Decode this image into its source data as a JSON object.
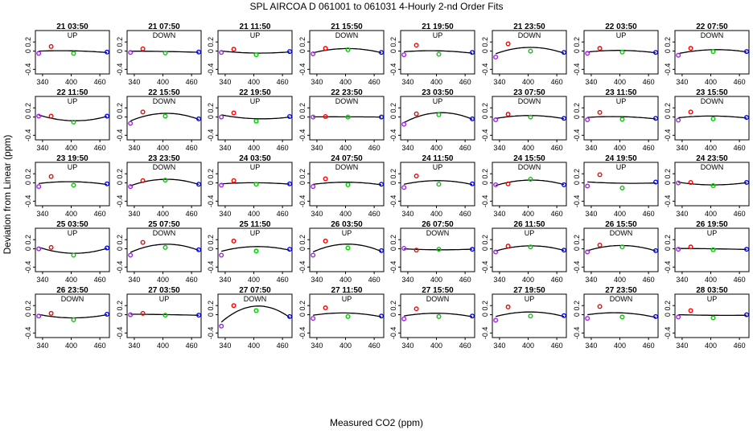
{
  "chart_data": {
    "type": "scatter",
    "title": "SPL   AIRCOA D   061001 to 061031   4-Hourly 2-nd Order Fits",
    "xlabel": "Measured CO2 (ppm)",
    "ylabel": "Deviation from Linear (ppm)",
    "xlim": [
      325,
      480
    ],
    "ylim": [
      -0.5,
      0.45
    ],
    "xticks": [
      340,
      400,
      460
    ],
    "yticks": [
      -0.4,
      0.0,
      0.2
    ],
    "ytick_labels": [
      "-0.4",
      "0",
      "0.2"
    ],
    "grid": false,
    "standards_x": [
      332,
      358,
      405,
      475
    ],
    "point_colors": [
      "#a020f0",
      "#ff0000",
      "#00cc00",
      "#0000ff"
    ],
    "panels": [
      {
        "time": "21 03:50",
        "dir": "UP",
        "d": [
          -0.05,
          0.1,
          -0.05,
          -0.02
        ]
      },
      {
        "time": "21 07:50",
        "dir": "DOWN",
        "d": [
          -0.03,
          0.05,
          -0.04,
          -0.02
        ]
      },
      {
        "time": "21 11:50",
        "dir": "UP",
        "d": [
          -0.03,
          0.04,
          -0.08,
          -0.01
        ]
      },
      {
        "time": "21 15:50",
        "dir": "DOWN",
        "d": [
          -0.06,
          0.06,
          0.03,
          -0.03
        ]
      },
      {
        "time": "21 19:50",
        "dir": "UP",
        "d": [
          -0.08,
          0.13,
          -0.07,
          -0.03
        ]
      },
      {
        "time": "21 23:50",
        "dir": "DOWN",
        "d": [
          -0.13,
          0.16,
          0.0,
          -0.03
        ]
      },
      {
        "time": "22 03:50",
        "dir": "UP",
        "d": [
          -0.05,
          0.06,
          -0.02,
          -0.03
        ]
      },
      {
        "time": "22 07:50",
        "dir": "DOWN",
        "d": [
          -0.09,
          0.06,
          -0.01,
          -0.01
        ]
      },
      {
        "time": "22 11:50",
        "dir": "UP",
        "d": [
          0.02,
          0.02,
          -0.11,
          0.02
        ]
      },
      {
        "time": "22 15:50",
        "dir": "DOWN",
        "d": [
          -0.14,
          0.11,
          0.02,
          -0.04
        ]
      },
      {
        "time": "22 19:50",
        "dir": "UP",
        "d": [
          0.0,
          0.09,
          -0.09,
          0.01
        ]
      },
      {
        "time": "22 23:50",
        "dir": "DOWN",
        "d": [
          0.0,
          0.01,
          0.0,
          0.0
        ]
      },
      {
        "time": "23 03:50",
        "dir": "UP",
        "d": [
          -0.16,
          0.07,
          0.05,
          -0.04
        ]
      },
      {
        "time": "23 07:50",
        "dir": "DOWN",
        "d": [
          -0.06,
          0.06,
          0.0,
          -0.03
        ]
      },
      {
        "time": "23 11:50",
        "dir": "UP",
        "d": [
          -0.06,
          0.1,
          -0.05,
          -0.03
        ]
      },
      {
        "time": "23 15:50",
        "dir": "DOWN",
        "d": [
          -0.07,
          0.11,
          -0.04,
          -0.01
        ]
      },
      {
        "time": "23 19:50",
        "dir": "UP",
        "d": [
          -0.08,
          0.14,
          -0.05,
          -0.02
        ]
      },
      {
        "time": "23 23:50",
        "dir": "DOWN",
        "d": [
          -0.08,
          0.05,
          0.06,
          -0.03
        ]
      },
      {
        "time": "24 03:50",
        "dir": "UP",
        "d": [
          -0.05,
          0.05,
          -0.03,
          -0.02
        ]
      },
      {
        "time": "24 07:50",
        "dir": "DOWN",
        "d": [
          -0.08,
          0.09,
          -0.04,
          -0.03
        ]
      },
      {
        "time": "24 11:50",
        "dir": "UP",
        "d": [
          -0.1,
          0.15,
          -0.03,
          -0.02
        ]
      },
      {
        "time": "24 15:50",
        "dir": "DOWN",
        "d": [
          -0.04,
          -0.02,
          0.08,
          -0.04
        ]
      },
      {
        "time": "24 19:50",
        "dir": "UP",
        "d": [
          -0.07,
          0.18,
          -0.11,
          0.02
        ]
      },
      {
        "time": "24 23:50",
        "dir": "DOWN",
        "d": [
          0.0,
          0.01,
          -0.06,
          0.01
        ]
      },
      {
        "time": "25 03:50",
        "dir": "UP",
        "d": [
          0.0,
          0.03,
          -0.14,
          0.02
        ]
      },
      {
        "time": "25 07:50",
        "dir": "DOWN",
        "d": [
          -0.14,
          0.14,
          0.03,
          -0.02
        ]
      },
      {
        "time": "25 11:50",
        "dir": "UP",
        "d": [
          -0.14,
          0.17,
          -0.05,
          -0.01
        ]
      },
      {
        "time": "26 03:50",
        "dir": "UP",
        "d": [
          -0.14,
          0.17,
          0.02,
          -0.04
        ]
      },
      {
        "time": "26 07:50",
        "dir": "DOWN",
        "d": [
          0.01,
          -0.03,
          -0.01,
          -0.01
        ]
      },
      {
        "time": "26 11:50",
        "dir": "UP",
        "d": [
          -0.07,
          0.06,
          0.04,
          -0.03
        ]
      },
      {
        "time": "26 15:50",
        "dir": "DOWN",
        "d": [
          -0.07,
          0.08,
          0.04,
          -0.04
        ]
      },
      {
        "time": "26 19:50",
        "dir": "UP",
        "d": [
          -0.01,
          0.04,
          -0.02,
          -0.01
        ]
      },
      {
        "time": "26 23:50",
        "dir": "DOWN",
        "d": [
          -0.03,
          0.03,
          -0.11,
          0.01
        ]
      },
      {
        "time": "27 03:50",
        "dir": "UP",
        "d": [
          0.0,
          0.03,
          -0.01,
          -0.01
        ]
      },
      {
        "time": "27 07:50",
        "dir": "DOWN",
        "d": [
          -0.25,
          0.2,
          0.09,
          -0.04
        ]
      },
      {
        "time": "27 11:50",
        "dir": "UP",
        "d": [
          -0.08,
          0.15,
          -0.04,
          -0.03
        ]
      },
      {
        "time": "27 15:50",
        "dir": "DOWN",
        "d": [
          -0.09,
          0.13,
          -0.04,
          -0.03
        ]
      },
      {
        "time": "27 19:50",
        "dir": "UP",
        "d": [
          -0.12,
          0.17,
          -0.03,
          -0.02
        ]
      },
      {
        "time": "27 23:50",
        "dir": "DOWN",
        "d": [
          -0.08,
          0.18,
          -0.05,
          -0.04
        ]
      },
      {
        "time": "28 03:50",
        "dir": "UP",
        "d": [
          -0.05,
          0.09,
          -0.07,
          0.0
        ]
      }
    ]
  }
}
